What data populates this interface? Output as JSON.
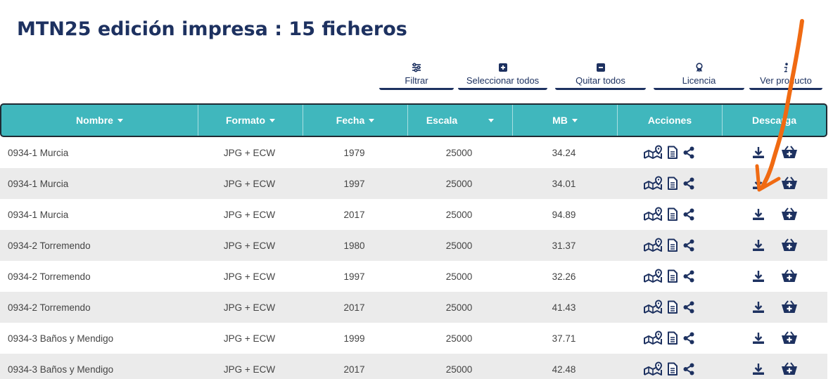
{
  "page": {
    "title": "MTN25 edición impresa : 15  ficheros"
  },
  "toolbar": {
    "filter_label": "Filtrar",
    "select_all_label": "Seleccionar todos",
    "clear_all_label": "Quitar todos",
    "license_label": "Licencia",
    "view_product_label": "Ver producto"
  },
  "table": {
    "columns": {
      "nombre": "Nombre",
      "formato": "Formato",
      "fecha": "Fecha",
      "escala": "Escala",
      "mb": "MB",
      "acciones": "Acciones",
      "descarga": "Descarga"
    },
    "rows": [
      {
        "nombre": "0934-1 Murcia",
        "formato": "JPG + ECW",
        "fecha": "1979",
        "escala": "25000",
        "mb": "34.24"
      },
      {
        "nombre": "0934-1 Murcia",
        "formato": "JPG + ECW",
        "fecha": "1997",
        "escala": "25000",
        "mb": "34.01"
      },
      {
        "nombre": "0934-1 Murcia",
        "formato": "JPG + ECW",
        "fecha": "2017",
        "escala": "25000",
        "mb": "94.89"
      },
      {
        "nombre": "0934-2 Torremendo",
        "formato": "JPG + ECW",
        "fecha": "1980",
        "escala": "25000",
        "mb": "31.37"
      },
      {
        "nombre": "0934-2 Torremendo",
        "formato": "JPG + ECW",
        "fecha": "1997",
        "escala": "25000",
        "mb": "32.26"
      },
      {
        "nombre": "0934-2 Torremendo",
        "formato": "JPG + ECW",
        "fecha": "2017",
        "escala": "25000",
        "mb": "41.43"
      },
      {
        "nombre": "0934-3 Baños y Mendigo",
        "formato": "JPG + ECW",
        "fecha": "1999",
        "escala": "25000",
        "mb": "37.71"
      },
      {
        "nombre": "0934-3 Baños y Mendigo",
        "formato": "JPG + ECW",
        "fecha": "2017",
        "escala": "25000",
        "mb": "42.48"
      }
    ]
  },
  "icons": {
    "actions": [
      "map-location-icon",
      "document-icon",
      "share-icon"
    ],
    "download": [
      "download-icon",
      "add-to-cart-icon"
    ]
  },
  "colors": {
    "title": "#1d3160",
    "header_bg": "#40b7bd",
    "header_border": "#1f2a33",
    "icon": "#1d3160",
    "row_alt": "#ebebeb",
    "annotation_arrow": "#f06a12"
  }
}
